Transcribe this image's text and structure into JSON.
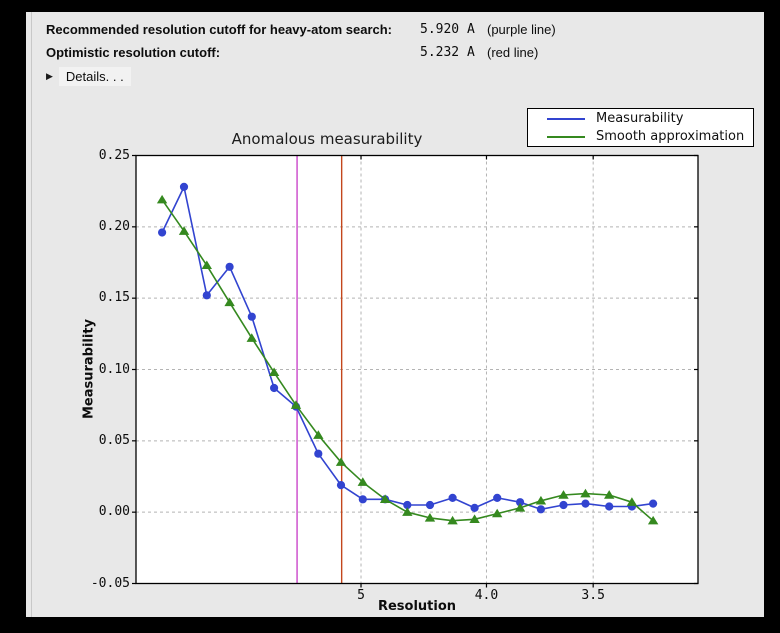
{
  "window": {
    "outer_bg": "#000000",
    "panel_bg": "#e8e8e8",
    "divider_color": "#c8c8c8"
  },
  "header": {
    "rows": [
      {
        "label": "Recommended resolution cutoff for heavy-atom search:",
        "value": "5.920 A",
        "note": "(purple line)"
      },
      {
        "label": "Optimistic resolution cutoff:",
        "value": "5.232 A",
        "note": "(red line)"
      }
    ],
    "details": {
      "label": "Details. . .",
      "triangle_icon": "▶",
      "expanded": false
    }
  },
  "chart_data": {
    "type": "line",
    "title": "Anomalous measurability",
    "xlabel": "Resolution",
    "ylabel": "Measurability",
    "x_scale": "1/d^2, reversed (resolution in Angstrom decreasing to the right)",
    "x_range_inv_d2": [
      -0.00035,
      0.10043
    ],
    "ylim": [
      -0.05,
      0.25
    ],
    "grid": true,
    "grid_color": "#b4b4b4",
    "yticks": [
      {
        "value": 0.25,
        "label": "0.25"
      },
      {
        "value": 0.2,
        "label": "0.20"
      },
      {
        "value": 0.15,
        "label": "0.15"
      },
      {
        "value": 0.1,
        "label": "0.10"
      },
      {
        "value": 0.05,
        "label": "0.05"
      },
      {
        "value": 0.0,
        "label": "0.00"
      },
      {
        "value": -0.05,
        "label": "-0.05"
      }
    ],
    "xticks": [
      {
        "d": 5.0,
        "label": "5"
      },
      {
        "d": 4.0,
        "label": "4.0"
      },
      {
        "d": 3.5,
        "label": "3.5"
      }
    ],
    "legend": {
      "position": "upper right",
      "bg": "#ffffff",
      "border": "#000000"
    },
    "resolution_d": [
      15.2,
      11.0,
      9.0,
      7.8,
      7.0,
      6.4,
      5.94,
      5.56,
      5.24,
      4.98,
      4.75,
      4.55,
      4.37,
      4.21,
      4.07,
      3.94,
      3.82,
      3.72,
      3.62,
      3.53,
      3.44,
      3.36,
      3.29
    ],
    "series": [
      {
        "name": "Measurability",
        "color": "#3244d0",
        "marker": "circle",
        "values": [
          0.196,
          0.228,
          0.152,
          0.172,
          0.137,
          0.087,
          0.074,
          0.041,
          0.019,
          0.009,
          0.009,
          0.005,
          0.005,
          0.01,
          0.003,
          0.01,
          0.007,
          0.002,
          0.005,
          0.006,
          0.004,
          0.004,
          0.006
        ]
      },
      {
        "name": "Smooth approximation",
        "color": "#35891f",
        "marker": "triangle",
        "values": [
          0.219,
          0.197,
          0.173,
          0.147,
          0.122,
          0.098,
          0.075,
          0.054,
          0.035,
          0.021,
          0.009,
          0.0,
          -0.004,
          -0.006,
          -0.005,
          -0.001,
          0.003,
          0.008,
          0.012,
          0.013,
          0.012,
          0.007,
          -0.006
        ]
      }
    ],
    "vlines": [
      {
        "d": 5.92,
        "color": "#ca46ca",
        "label": "purple line"
      },
      {
        "d": 5.232,
        "color": "#c3471c",
        "label": "red line"
      }
    ]
  }
}
